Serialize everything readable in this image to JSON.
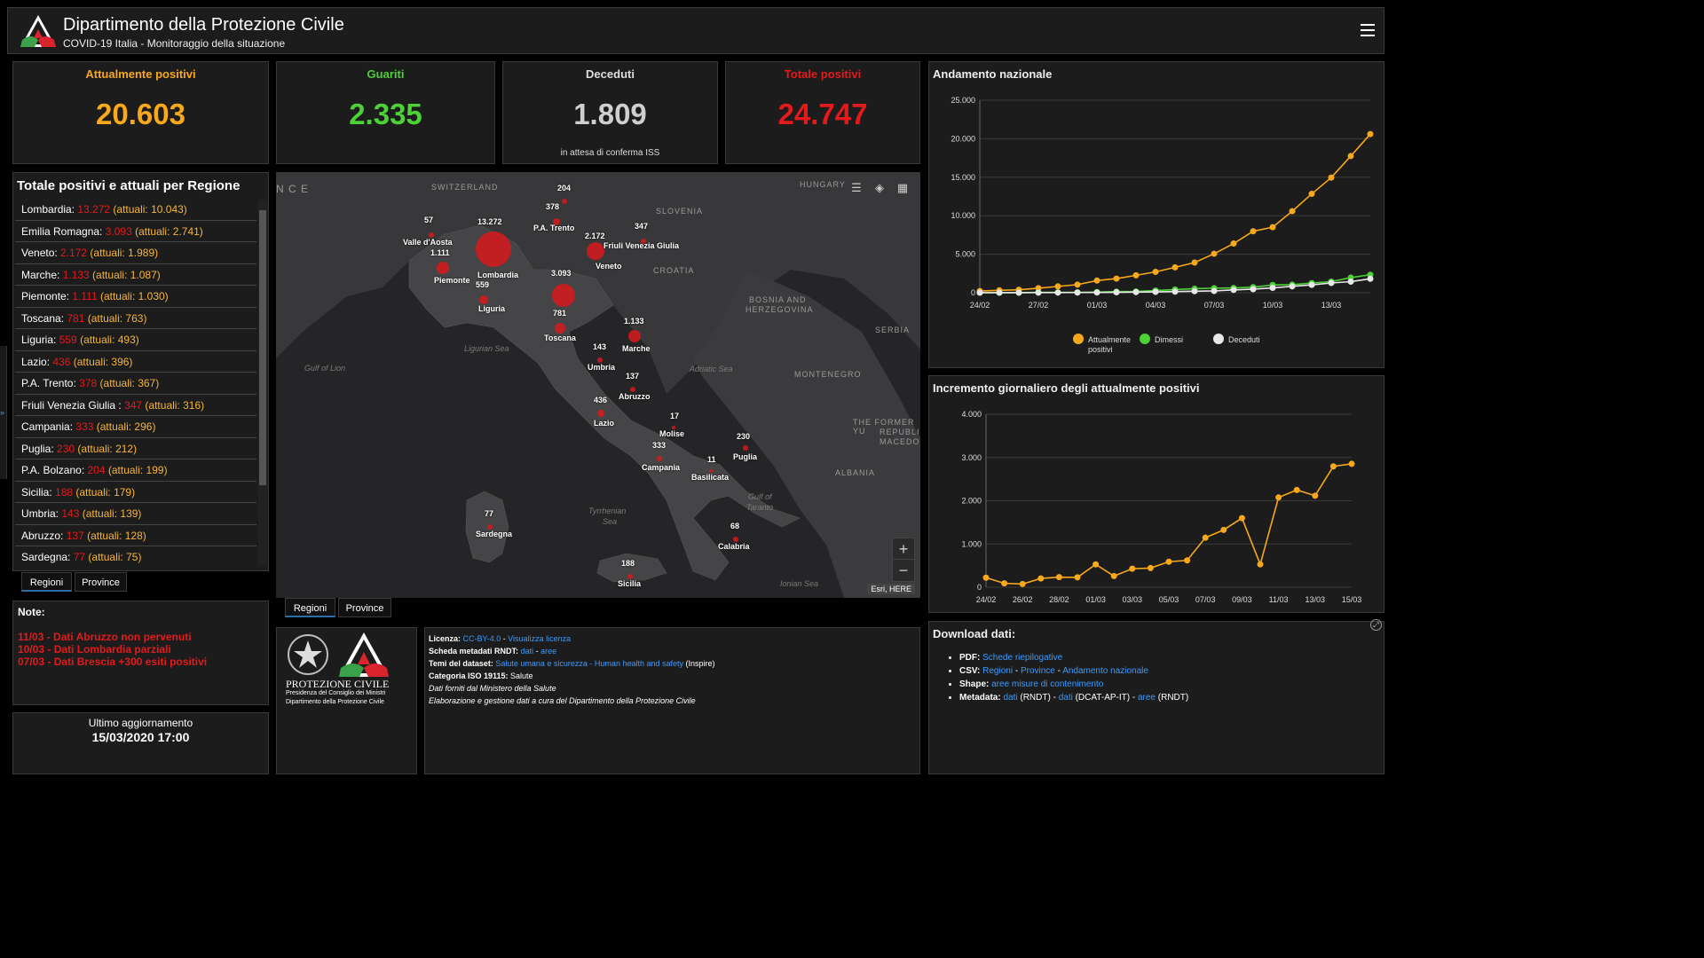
{
  "header": {
    "title": "Dipartimento della Protezione Civile",
    "subtitle": "COVID-19 Italia - Monitoraggio della situazione",
    "menu_icon": "hamburger-icon"
  },
  "stats": [
    {
      "label": "Attualmente positivi",
      "value": "20.603",
      "note": "",
      "color": "#f7a81b"
    },
    {
      "label": "Guariti",
      "value": "2.335",
      "note": "",
      "color": "#4cd137"
    },
    {
      "label": "Deceduti",
      "value": "1.809",
      "note": "in attesa di conferma ISS",
      "color": "#cfcfcf"
    },
    {
      "label": "Totale positivi",
      "value": "24.747",
      "note": "",
      "color": "#e31a1c"
    }
  ],
  "regions_panel": {
    "title": "Totale positivi e attuali per Regione",
    "items": [
      {
        "name": "Lombardia: ",
        "total": "13.272",
        "current": " (attuali: 10.043)"
      },
      {
        "name": "Emilia Romagna: ",
        "total": "3.093",
        "current": " (attuali: 2.741)"
      },
      {
        "name": "Veneto: ",
        "total": "2.172",
        "current": " (attuali: 1.989)"
      },
      {
        "name": "Marche: ",
        "total": "1.133",
        "current": " (attuali: 1.087)"
      },
      {
        "name": "Piemonte: ",
        "total": "1.111",
        "current": " (attuali: 1.030)"
      },
      {
        "name": "Toscana: ",
        "total": "781",
        "current": " (attuali: 763)"
      },
      {
        "name": "Liguria: ",
        "total": "559",
        "current": " (attuali: 493)"
      },
      {
        "name": "Lazio: ",
        "total": "436",
        "current": " (attuali: 396)"
      },
      {
        "name": "P.A. Trento: ",
        "total": "378",
        "current": " (attuali: 367)"
      },
      {
        "name": "Friuli Venezia Giulia : ",
        "total": "347",
        "current": " (attuali: 316)"
      },
      {
        "name": "Campania: ",
        "total": "333",
        "current": " (attuali: 296)"
      },
      {
        "name": "Puglia: ",
        "total": "230",
        "current": " (attuali: 212)"
      },
      {
        "name": "P.A. Bolzano: ",
        "total": "204",
        "current": " (attuali: 199)"
      },
      {
        "name": "Sicilia: ",
        "total": "188",
        "current": " (attuali: 179)"
      },
      {
        "name": "Umbria: ",
        "total": "143",
        "current": " (attuali: 139)"
      },
      {
        "name": "Abruzzo: ",
        "total": "137",
        "current": " (attuali: 128)"
      },
      {
        "name": "Sardegna: ",
        "total": "77",
        "current": " (attuali: 75)"
      }
    ],
    "tabs": [
      "Regioni",
      "Province"
    ]
  },
  "notes": {
    "title": "Note:",
    "items": [
      "11/03 - Dati Abruzzo non pervenuti",
      "10/03 - Dati Lombardia parziali",
      "07/03 - Dati Brescia +300 esiti positivi"
    ]
  },
  "update": {
    "label": "Ultimo aggiornamento",
    "date": "15/03/2020 17:00"
  },
  "map": {
    "country_labels": [
      "SWITZERLAND",
      "HUNGARY",
      "SLOVENIA",
      "CROATIA",
      "BOSNIA AND",
      "HERZEGOVINA",
      "SERBIA",
      "MONTENEGRO",
      "ALBANIA",
      "THE FORMER YU",
      "REPUBLIC",
      "MACEDO",
      "N C E"
    ],
    "sea_labels": [
      "Gulf of Lion",
      "Ligurian Sea",
      "Adriatic Sea",
      "Tyrrhenian",
      "Sea",
      "Gulf of",
      "Taranto",
      "Ionian Sea"
    ],
    "markers": [
      {
        "value": "13.272",
        "name": "Lombardia"
      },
      {
        "value": "3.093",
        "name": ""
      },
      {
        "value": "2.172",
        "name": "Veneto"
      },
      {
        "value": "1.133",
        "name": "Marche"
      },
      {
        "value": "1.111",
        "name": "Piemonte"
      },
      {
        "value": "781",
        "name": "Toscana"
      },
      {
        "value": "559",
        "name": "Liguria"
      },
      {
        "value": "436",
        "name": "Lazio"
      },
      {
        "value": "378",
        "name": "P.A. Trento"
      },
      {
        "value": "347",
        "name": "Friuli Venezia Giulia"
      },
      {
        "value": "333",
        "name": "Campania"
      },
      {
        "value": "230",
        "name": "Puglia"
      },
      {
        "value": "204",
        "name": ""
      },
      {
        "value": "188",
        "name": "Sicilia"
      },
      {
        "value": "143",
        "name": "Umbria"
      },
      {
        "value": "137",
        "name": "Abruzzo"
      },
      {
        "value": "77",
        "name": "Sardegna"
      },
      {
        "value": "68",
        "name": "Calabria"
      },
      {
        "value": "57",
        "name": "Valle d'Aosta"
      },
      {
        "value": "17",
        "name": "Molise"
      },
      {
        "value": "11",
        "name": "Basilicata"
      }
    ],
    "tools": [
      "list-icon",
      "layers-icon",
      "qr-icon"
    ],
    "zoom": [
      "+",
      "−"
    ],
    "attribution": "Esri, HERE",
    "tabs": [
      "Regioni",
      "Province"
    ]
  },
  "logo_panel": {
    "brand": "PROTEZIONE CIVILE",
    "line1": "Presidenza del Consiglio dei Ministri",
    "line2": "Dipartimento della Protezione Civile"
  },
  "metadata": {
    "licenza_label": "Licenza:",
    "licenza_link": "CC-BY-4.0",
    "licenza_sep": " - ",
    "licenza_view": "Visualizza licenza",
    "scheda_label": "Scheda metadati RNDT:",
    "scheda_dati": "dati",
    "scheda_sep": " - ",
    "scheda_aree": "aree",
    "temi_label": "Temi del dataset:",
    "temi_link": "Salute umana e sicurezza - Human health and safety",
    "temi_after": " (Inspire)",
    "iso_label": "Categoria ISO 19115:",
    "iso_value": " Salute",
    "fonte": "Dati forniti dal Ministero della Salute",
    "elaborazione": "Elaborazione e gestione dati a cura del Dipartimento della Protezione Civile"
  },
  "downloads": {
    "title": "Download dati:",
    "pdf_label": "PDF:",
    "pdf_link": "Schede riepilogative",
    "csv_label": "CSV:",
    "csv_l1": "Regioni",
    "csv_l2": "Province",
    "csv_l3": "Andamento nazionale",
    "sep": " - ",
    "shape_label": "Shape:",
    "shape_link": "aree misure di contenimento",
    "meta_label": "Metadata:",
    "meta_l1": "dati",
    "meta_t1": " (RNDT) - ",
    "meta_l2": "dati",
    "meta_t2": " (DCAT-AP-IT) - ",
    "meta_l3": "aree",
    "meta_t3": " (RNDT)"
  },
  "chart_data": [
    {
      "type": "line",
      "title": "Andamento nazionale",
      "x": [
        "24/02",
        "25/02",
        "26/02",
        "27/02",
        "28/02",
        "29/02",
        "01/03",
        "02/03",
        "03/03",
        "04/03",
        "05/03",
        "06/03",
        "07/03",
        "08/03",
        "09/03",
        "10/03",
        "11/03",
        "12/03",
        "13/03",
        "14/03",
        "15/03"
      ],
      "x_tick_labels": [
        "24/02",
        "27/02",
        "01/03",
        "04/03",
        "07/03",
        "10/03",
        "13/03"
      ],
      "ylim": [
        0,
        25000
      ],
      "y_tick_labels": [
        "0",
        "5.000",
        "10.000",
        "15.000",
        "20.000",
        "25.000"
      ],
      "legend_position": "bottom",
      "grid": true,
      "series": [
        {
          "name": "Attualmente positivi",
          "color": "#f7a81b",
          "values": [
            221,
            311,
            385,
            588,
            821,
            1049,
            1577,
            1835,
            2263,
            2706,
            3296,
            3916,
            5061,
            6387,
            7985,
            8514,
            10590,
            12839,
            14955,
            17750,
            20603
          ]
        },
        {
          "name": "Dimessi",
          "color": "#4cd137",
          "values": [
            1,
            1,
            3,
            45,
            46,
            50,
            83,
            149,
            160,
            276,
            414,
            523,
            589,
            622,
            724,
            1004,
            1045,
            1258,
            1439,
            1966,
            2335
          ]
        },
        {
          "name": "Deceduti",
          "color": "#e8e8e8",
          "values": [
            7,
            10,
            12,
            17,
            21,
            29,
            34,
            52,
            79,
            107,
            148,
            197,
            233,
            366,
            463,
            631,
            827,
            1016,
            1266,
            1441,
            1809
          ]
        }
      ]
    },
    {
      "type": "line",
      "title": "Incremento giornaliero degli attualmente positivi",
      "x": [
        "24/02",
        "25/02",
        "26/02",
        "27/02",
        "28/02",
        "29/02",
        "01/03",
        "02/03",
        "03/03",
        "04/03",
        "05/03",
        "06/03",
        "07/03",
        "08/03",
        "09/03",
        "10/03",
        "11/03",
        "12/03",
        "13/03",
        "14/03",
        "15/03"
      ],
      "x_tick_labels": [
        "24/02",
        "26/02",
        "28/02",
        "01/03",
        "03/03",
        "05/03",
        "07/03",
        "09/03",
        "11/03",
        "13/03",
        "15/03"
      ],
      "ylim": [
        0,
        4000
      ],
      "y_tick_labels": [
        "0",
        "1.000",
        "2.000",
        "3.000",
        "4.000"
      ],
      "grid": true,
      "series": [
        {
          "name": "",
          "color": "#f7a81b",
          "values": [
            221,
            90,
            74,
            203,
            233,
            228,
            528,
            258,
            428,
            443,
            590,
            620,
            1145,
            1326,
            1598,
            529,
            2076,
            2249,
            2116,
            2795,
            2853
          ]
        }
      ]
    }
  ]
}
